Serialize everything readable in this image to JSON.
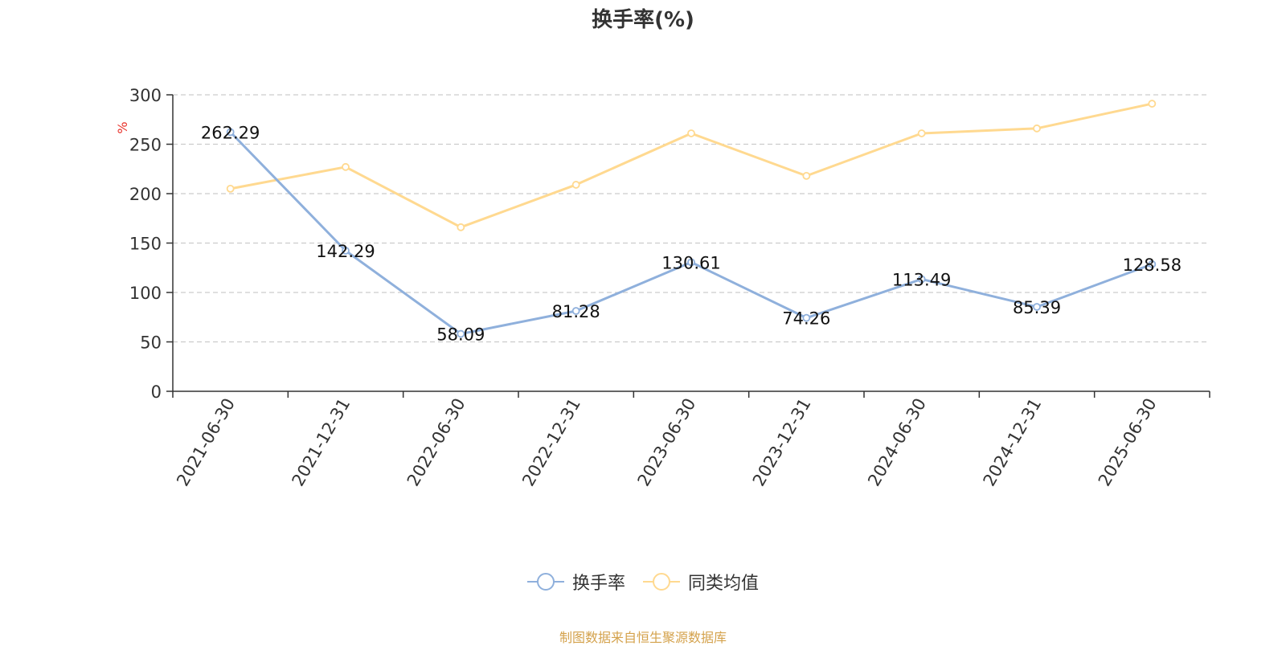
{
  "title": "换手率(%)",
  "source": "制图数据来自恒生聚源数据库",
  "colors": {
    "series1": "#8fb0dc",
    "series2": "#ffd990",
    "grid": "#cccccc",
    "axis": "#333333",
    "unit": "#e8322a",
    "source": "#d4a24c"
  },
  "chart_data": {
    "type": "line",
    "title": "换手率(%)",
    "ylabel": "%",
    "ylim": [
      0,
      300
    ],
    "yticks": [
      0,
      50,
      100,
      150,
      200,
      250,
      300
    ],
    "grid": true,
    "legend_position": "bottom-center",
    "x": [
      "2021-06-30",
      "2021-12-31",
      "2022-06-30",
      "2022-12-31",
      "2023-06-30",
      "2023-12-31",
      "2024-06-30",
      "2024-12-31",
      "2025-06-30"
    ],
    "series": [
      {
        "name": "换手率",
        "color": "#8fb0dc",
        "values": [
          262.29,
          142.29,
          58.09,
          81.28,
          130.61,
          74.26,
          113.49,
          85.39,
          128.58
        ],
        "labels": [
          "262.29",
          "142.29",
          "58.09",
          "81.28",
          "130.61",
          "74.26",
          "113.49",
          "85.39",
          "128.58"
        ]
      },
      {
        "name": "同类均值",
        "color": "#ffd990",
        "values": [
          205,
          227,
          166,
          209,
          261,
          218,
          261,
          266,
          291
        ]
      }
    ]
  }
}
